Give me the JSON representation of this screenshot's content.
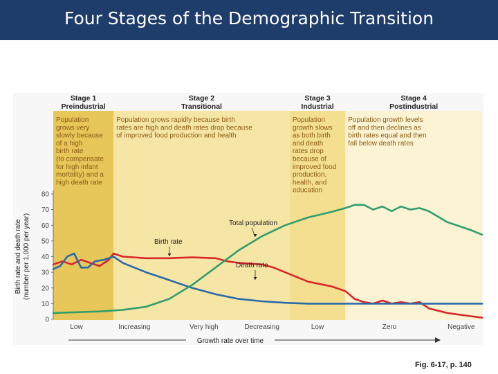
{
  "slide": {
    "title": "Four Stages of the Demographic Transition",
    "figure_ref": "Fig. 6-17, p. 140"
  },
  "colors": {
    "title_bar": "#1f3d6b",
    "stage1": "#e7c65a",
    "stage2": "#f6e6a6",
    "stage3": "#f4df90",
    "stage4": "#fbf3d3",
    "birth": "#d9262b",
    "death": "#2a6aa8",
    "population": "#2f9e6a"
  },
  "chart_data": {
    "type": "line",
    "ylabel": "Birth rate and death rate (number per 1,000 per year)",
    "ylabel_line1": "Birth rate and death rate",
    "ylabel_line2": "(number per 1,000 per year)",
    "xlabel": "Growth rate over time",
    "ylim": [
      0,
      80
    ],
    "yticks": [
      0,
      10,
      20,
      30,
      40,
      50,
      60,
      70,
      80
    ],
    "x_tick_labels": [
      "Low",
      "Increasing",
      "Very high",
      "Decreasing",
      "Low",
      "Zero",
      "Negative"
    ],
    "x_tick_positions": [
      1,
      3.5,
      6.5,
      9,
      11.4,
      14.5,
      17.6
    ],
    "xlim": [
      0,
      18.5
    ],
    "stages": [
      {
        "name": "Stage 1",
        "subtitle": "Preindustrial",
        "x_start": 0,
        "x_end": 2.6,
        "description": [
          "Population",
          "grows very",
          "slowly because",
          "of a high",
          "birth rate",
          "(to compensate",
          "for high infant",
          "mortality) and a",
          "high death rate"
        ]
      },
      {
        "name": "Stage 2",
        "subtitle": "Transitional",
        "x_start": 2.6,
        "x_end": 10.2,
        "description": [
          "Population grows rapidly because birth",
          "rates are high and death rates drop because",
          "of improved food production and health"
        ]
      },
      {
        "name": "Stage 3",
        "subtitle": "Industrial",
        "x_start": 10.2,
        "x_end": 12.6,
        "description": [
          "Population",
          "growth slows",
          "as both birth",
          "and death",
          "rates drop",
          "because of",
          "improved food",
          "production,",
          "health, and",
          "education"
        ]
      },
      {
        "name": "Stage 4",
        "subtitle": "Postindustrial",
        "x_start": 12.6,
        "x_end": 18.5,
        "description": [
          "Population growth levels",
          "off and then declines as",
          "birth rates equal and then",
          "fall below death rates"
        ]
      }
    ],
    "series": [
      {
        "name": "Birth rate",
        "color": "#d9262b",
        "x": [
          0,
          0.4,
          0.8,
          1.2,
          1.6,
          2.0,
          2.4,
          2.6,
          3.0,
          4.0,
          5.0,
          6.0,
          7.0,
          7.5,
          8.0,
          9.0,
          9.5,
          10.0,
          10.5,
          11.0,
          12.0,
          12.6,
          13.0,
          13.4,
          13.8,
          14.2,
          14.6,
          15.0,
          15.4,
          15.8,
          16.2,
          17.0,
          18.0,
          18.5
        ],
        "values": [
          35,
          37,
          35,
          38,
          36,
          34,
          38,
          42,
          40,
          39,
          39,
          39.5,
          39,
          37,
          36,
          35,
          33,
          30,
          27,
          24,
          21,
          18,
          13,
          11,
          10,
          12,
          10,
          11,
          10,
          11,
          7,
          4,
          2,
          1
        ]
      },
      {
        "name": "Death rate",
        "color": "#2a6aa8",
        "x": [
          0,
          0.3,
          0.6,
          0.9,
          1.2,
          1.5,
          1.8,
          2.2,
          2.6,
          3.0,
          4.0,
          5.0,
          6.0,
          7.0,
          8.0,
          9.0,
          10.0,
          11.0,
          12.0,
          13.0,
          14.0,
          15.0,
          16.0,
          17.0,
          18.5
        ],
        "values": [
          32,
          34,
          40,
          42,
          33,
          33,
          37,
          38,
          40,
          36,
          30,
          25,
          20,
          16,
          13,
          11.5,
          10.5,
          10,
          10,
          10,
          10,
          10,
          10,
          10,
          10
        ]
      },
      {
        "name": "Total population",
        "color": "#2f9e6a",
        "x": [
          0,
          1,
          2,
          3,
          4,
          5,
          6,
          7,
          8,
          9,
          10,
          11,
          12,
          12.6,
          13.0,
          13.4,
          13.8,
          14.2,
          14.6,
          15.0,
          15.4,
          15.8,
          16.2,
          17.0,
          18.0,
          18.5
        ],
        "values": [
          4,
          4.5,
          5,
          6,
          8,
          13,
          22,
          33,
          44,
          53,
          60,
          65,
          68.5,
          71,
          73,
          73,
          70,
          72,
          69,
          72,
          70,
          71,
          69,
          62,
          57,
          54
        ]
      }
    ],
    "annotations": [
      {
        "text": "Total population",
        "series": "Total population"
      },
      {
        "text": "Birth rate",
        "series": "Birth rate"
      },
      {
        "text": "Death rate",
        "series": "Death rate"
      }
    ]
  }
}
